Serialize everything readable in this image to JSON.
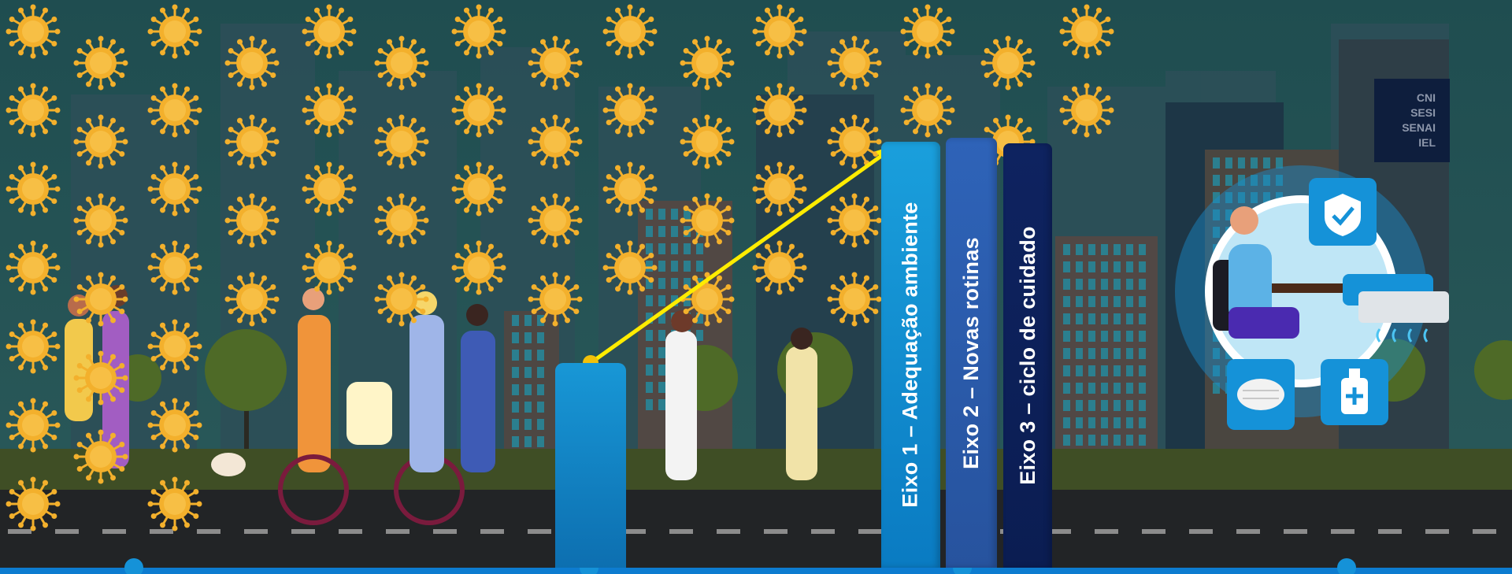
{
  "axes": [
    {
      "label": "Eixo 1 – Adequação ambiente"
    },
    {
      "label": "Eixo 2 – Novas rotinas"
    },
    {
      "label": "Eixo 3 – ciclo de cuidado"
    }
  ],
  "logo": {
    "lines": [
      "CNI",
      "SESI",
      "SENAI",
      "IEL"
    ]
  },
  "colors": {
    "sky": "#1d4a4d",
    "virus": "#f3b02c",
    "axis1": "#1a9fdc",
    "axis2": "#2e63b8",
    "axis3": "#0e2360",
    "arrow": "#ffec00",
    "road": "#222426"
  },
  "icons": [
    "virus-icon",
    "shield-check-icon",
    "face-mask-icon",
    "hand-sanitizer-icon",
    "air-conditioner-icon"
  ]
}
